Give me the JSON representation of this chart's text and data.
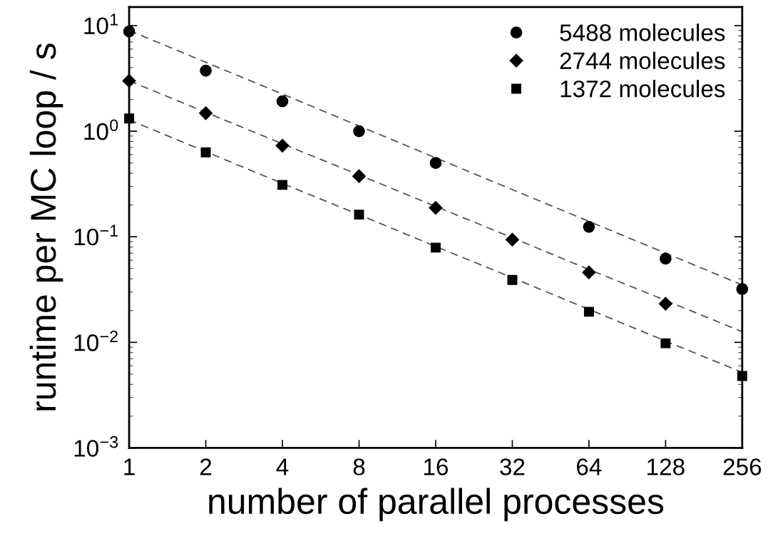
{
  "chart_data": {
    "type": "scatter",
    "xlabel": "number of parallel processes",
    "ylabel": "runtime per MC loop / s",
    "log": "xy",
    "xlim": [
      1,
      256
    ],
    "ylim": [
      0.001,
      15
    ],
    "xticks": [
      1,
      2,
      4,
      8,
      16,
      32,
      64,
      128,
      256
    ],
    "yticks": [
      {
        "value": 10,
        "label": "10$^{1}$"
      },
      {
        "value": 1,
        "label": "10$^{0}$"
      },
      {
        "value": 0.1,
        "label": "10$^{−1}$"
      },
      {
        "value": 0.01,
        "label": "10$^{−2}$"
      },
      {
        "value": 0.001,
        "label": "10$^{−3}$"
      }
    ],
    "grid": false,
    "legend": "top right",
    "x": [
      1,
      2,
      4,
      8,
      16,
      32,
      64,
      128,
      256
    ],
    "series": [
      {
        "name": "5488 molecules",
        "color": "#000000",
        "marker": "circle",
        "values": [
          8.8,
          3.75,
          1.92,
          1.0,
          0.5,
          null,
          0.124,
          0.062,
          0.032
        ]
      },
      {
        "name": "2744 molecules",
        "color": "#000000",
        "marker": "diamond",
        "values": [
          3.0,
          1.48,
          0.73,
          0.375,
          0.188,
          0.094,
          0.046,
          0.0232,
          null
        ]
      },
      {
        "name": "1372 molecules",
        "color": "#000000",
        "marker": "square",
        "values": [
          1.32,
          0.63,
          0.31,
          0.162,
          0.079,
          0.039,
          0.0195,
          0.0098,
          0.0048
        ]
      },
      {
        "type": "line",
        "color": "#555555",
        "line_style": "dashed",
        "marker": "none",
        "values": [
          9.0,
          4.5,
          2.25,
          1.12,
          0.56,
          0.28,
          0.14,
          0.07,
          0.035
        ]
      },
      {
        "type": "line",
        "color": "#555555",
        "line_style": "dashed",
        "marker": "none",
        "values": [
          3.0,
          1.51,
          0.76,
          0.385,
          0.194,
          0.098,
          0.049,
          0.025,
          0.0126
        ]
      },
      {
        "type": "line",
        "color": "#555555",
        "line_style": "dashed",
        "marker": "none",
        "values": [
          1.28,
          0.64,
          0.32,
          0.162,
          0.081,
          0.041,
          0.0205,
          0.0103,
          0.0052
        ]
      }
    ]
  }
}
